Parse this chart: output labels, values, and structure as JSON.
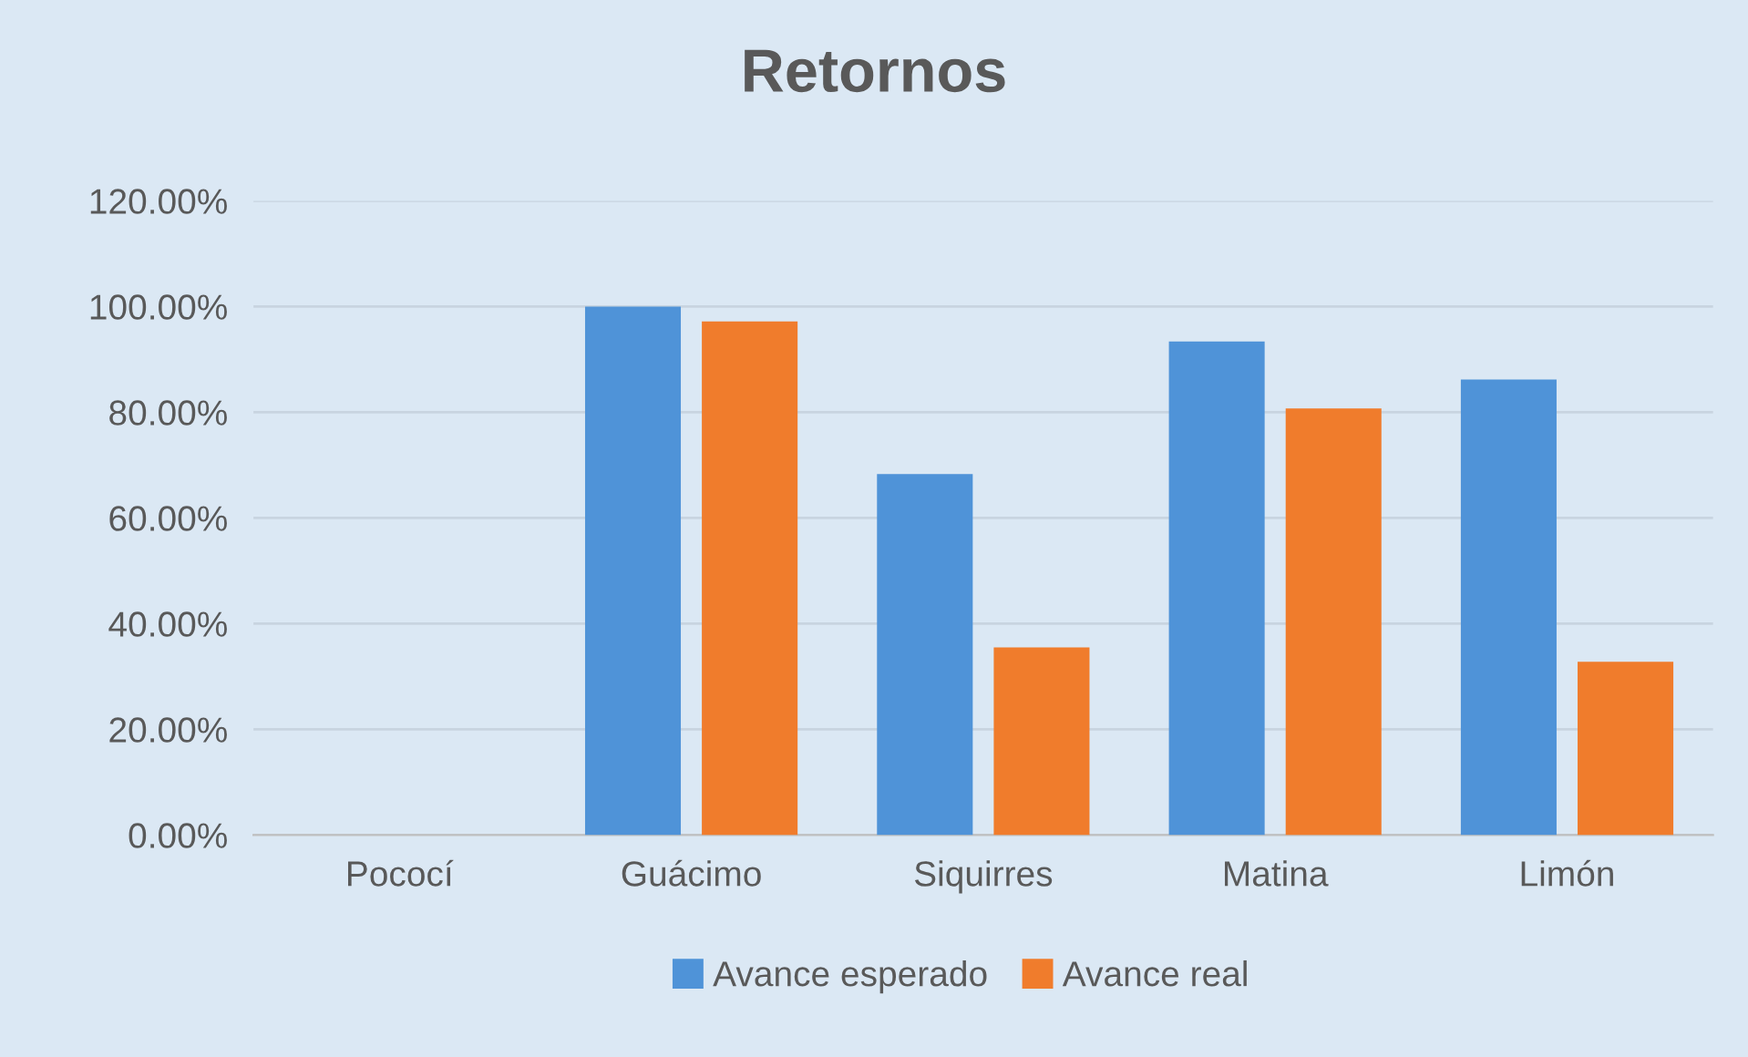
{
  "chart_data": {
    "type": "bar",
    "title": "Retornos",
    "categories": [
      "Pococí",
      "Guácimo",
      "Siquirres",
      "Matina",
      "Limón"
    ],
    "series": [
      {
        "name": "Avance esperado",
        "color": "#4f93d8",
        "values": [
          null,
          100,
          68.3,
          93.4,
          86.2
        ]
      },
      {
        "name": "Avance real",
        "color": "#f07c2c",
        "values": [
          null,
          97.2,
          35.5,
          80.7,
          32.8
        ]
      }
    ],
    "ylim": [
      0,
      120
    ],
    "yticks": [
      {
        "value": 0,
        "label": "0.00%"
      },
      {
        "value": 20,
        "label": "20.00%"
      },
      {
        "value": 40,
        "label": "40.00%"
      },
      {
        "value": 60,
        "label": "60.00%"
      },
      {
        "value": 80,
        "label": "80.00%"
      },
      {
        "value": 100,
        "label": "100.00%"
      },
      {
        "value": 120,
        "label": "120.00%"
      }
    ],
    "grid": "y",
    "legend": "bottom"
  }
}
